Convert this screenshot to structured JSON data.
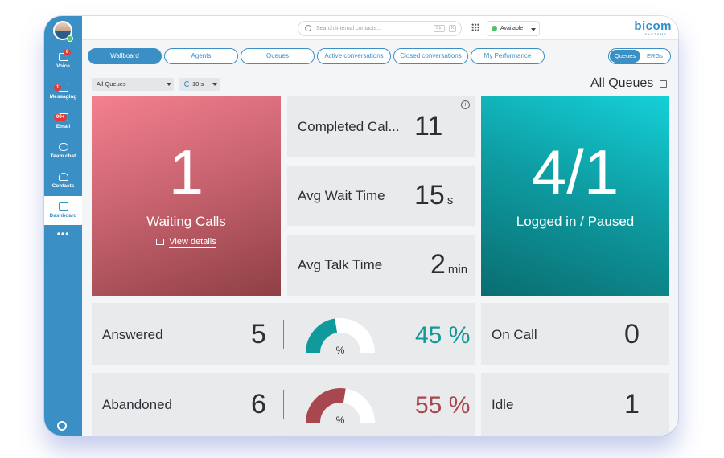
{
  "sidebar": {
    "items": [
      {
        "label": "Voice",
        "badge": "8"
      },
      {
        "label": "Messaging",
        "badge": "1"
      },
      {
        "label": "Email",
        "badge": "99+"
      },
      {
        "label": "Team chat"
      },
      {
        "label": "Contacts"
      },
      {
        "label": "Dashboard"
      }
    ],
    "more": "•••"
  },
  "topbar": {
    "search_placeholder": "Search internal contacts...",
    "kbd_ctrl": "Ctrl",
    "kbd_k": "K",
    "status": "Available",
    "logo": "bicom",
    "logo_sub": "SYSTEMS"
  },
  "tabs": [
    {
      "label": "Wallboard",
      "active": true
    },
    {
      "label": "Agents"
    },
    {
      "label": "Queues"
    },
    {
      "label": "Active conversations"
    },
    {
      "label": "Closed conversations"
    },
    {
      "label": "My Performance"
    }
  ],
  "toggle": {
    "on": "Queues",
    "off": "ERGs"
  },
  "filters": {
    "queue": "All Queues",
    "interval": "10 s"
  },
  "page_title": "All Queues",
  "waiting": {
    "value": "1",
    "label": "Waiting Calls",
    "details": "View details"
  },
  "completed": {
    "label": "Completed Cal...",
    "value": "11"
  },
  "avg_wait": {
    "label": "Avg Wait Time",
    "value": "15",
    "unit": "s"
  },
  "avg_talk": {
    "label": "Avg Talk Time",
    "value": "2",
    "unit": "min"
  },
  "logged": {
    "value": "4/1",
    "label": "Logged in / Paused"
  },
  "answered": {
    "label": "Answered",
    "value": "5",
    "percent": "45 %",
    "gauge_fraction": 0.45,
    "gauge_label": "%",
    "color": "#109a9c"
  },
  "abandoned": {
    "label": "Abandoned",
    "value": "6",
    "percent": "55 %",
    "gauge_fraction": 0.55,
    "gauge_label": "%",
    "color": "#a84750"
  },
  "on_call": {
    "label": "On Call",
    "value": "0"
  },
  "idle": {
    "label": "Idle",
    "value": "1"
  },
  "info_icon": "i"
}
